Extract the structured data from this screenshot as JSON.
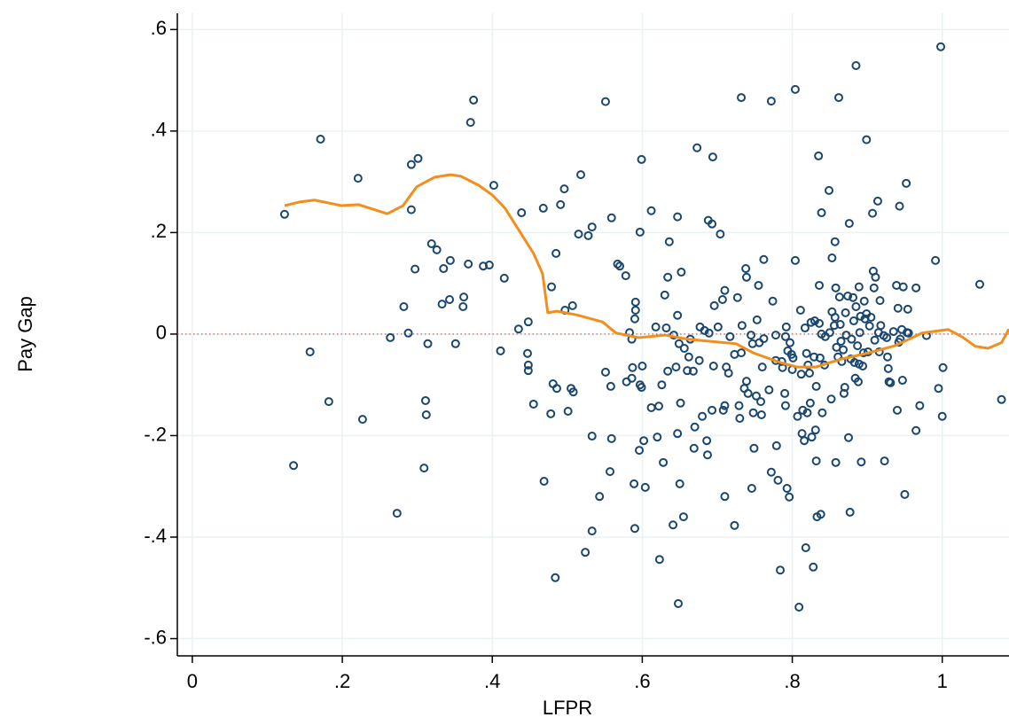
{
  "chart_data": {
    "type": "scatter",
    "x_label": "LFPR",
    "y_label": "Pay Gap",
    "xlim": [
      -0.02,
      1.089
    ],
    "ylim": [
      -0.634,
      0.632
    ],
    "xticks": [
      0,
      {
        "value": 0.2,
        "label": ".2"
      },
      {
        "value": 0.4,
        "label": ".4"
      },
      {
        "value": 0.6,
        "label": ".6"
      },
      {
        "value": 0.8,
        "label": ".8"
      },
      1
    ],
    "yticks": [
      {
        "value": -0.6,
        "label": "-.6"
      },
      {
        "value": -0.4,
        "label": "-.4"
      },
      {
        "value": -0.2,
        "label": "-.2"
      },
      0,
      {
        "value": 0.2,
        "label": ".2"
      },
      {
        "value": 0.4,
        "label": ".4"
      },
      {
        "value": 0.6,
        "label": ".6"
      }
    ],
    "grid": true,
    "reference_line": {
      "value": 0,
      "color": "#c0504d"
    },
    "series": [
      {
        "type": "scatter",
        "color": "#1a476f",
        "x": [
          0.123,
          0.135,
          0.157,
          0.171,
          0.182,
          0.221,
          0.227,
          0.264,
          0.273,
          0.282,
          0.288,
          0.292,
          0.292,
          0.297,
          0.301,
          0.309,
          0.311,
          0.312,
          0.314,
          0.319,
          0.326,
          0.333,
          0.335,
          0.343,
          0.344,
          0.351,
          0.361,
          0.362,
          0.368,
          0.371,
          0.375,
          0.388,
          0.396,
          0.402,
          0.411,
          0.416,
          0.435,
          0.439,
          0.448,
          0.447,
          0.448,
          0.448,
          0.455,
          0.468,
          0.469,
          0.479,
          0.478,
          0.481,
          0.484,
          0.485,
          0.486,
          0.491,
          0.496,
          0.497,
          0.501,
          0.505,
          0.507,
          0.508,
          0.518,
          0.515,
          0.524,
          0.528,
          0.533,
          0.533,
          0.533,
          0.543,
          0.551,
          0.551,
          0.557,
          0.558,
          0.559,
          0.559,
          0.567,
          0.57,
          0.578,
          0.579,
          0.583,
          0.586,
          0.586,
          0.587,
          0.589,
          0.59,
          0.59,
          0.591,
          0.591,
          0.596,
          0.597,
          0.597,
          0.599,
          0.599,
          0.6,
          0.602,
          0.604,
          0.612,
          0.612,
          0.618,
          0.62,
          0.622,
          0.623,
          0.626,
          0.628,
          0.63,
          0.632,
          0.634,
          0.634,
          0.636,
          0.641,
          0.642,
          0.645,
          0.647,
          0.647,
          0.647,
          0.648,
          0.649,
          0.65,
          0.651,
          0.652,
          0.655,
          0.656,
          0.66,
          0.662,
          0.664,
          0.668,
          0.669,
          0.67,
          0.673,
          0.676,
          0.677,
          0.68,
          0.683,
          0.686,
          0.687,
          0.688,
          0.689,
          0.693,
          0.694,
          0.693,
          0.695,
          0.696,
          0.701,
          0.704,
          0.707,
          0.708,
          0.71,
          0.71,
          0.71,
          0.712,
          0.715,
          0.717,
          0.723,
          0.723,
          0.727,
          0.729,
          0.73,
          0.732,
          0.732,
          0.733,
          0.736,
          0.738,
          0.739,
          0.739,
          0.741,
          0.745,
          0.746,
          0.747,
          0.748,
          0.749,
          0.752,
          0.753,
          0.755,
          0.756,
          0.758,
          0.759,
          0.76,
          0.762,
          0.762,
          0.769,
          0.772,
          0.772,
          0.774,
          0.778,
          0.778,
          0.779,
          0.781,
          0.784,
          0.786,
          0.787,
          0.79,
          0.791,
          0.791,
          0.792,
          0.793,
          0.794,
          0.796,
          0.797,
          0.799,
          0.8,
          0.801,
          0.804,
          0.804,
          0.807,
          0.809,
          0.811,
          0.812,
          0.813,
          0.814,
          0.816,
          0.817,
          0.818,
          0.819,
          0.82,
          0.821,
          0.823,
          0.824,
          0.825,
          0.826,
          0.828,
          0.829,
          0.83,
          0.831,
          0.832,
          0.832,
          0.833,
          0.835,
          0.836,
          0.836,
          0.837,
          0.838,
          0.839,
          0.839,
          0.84,
          0.843,
          0.844,
          0.849,
          0.85,
          0.852,
          0.853,
          0.853,
          0.856,
          0.857,
          0.857,
          0.858,
          0.858,
          0.859,
          0.861,
          0.862,
          0.863,
          0.864,
          0.865,
          0.866,
          0.868,
          0.869,
          0.87,
          0.871,
          0.872,
          0.874,
          0.875,
          0.876,
          0.877,
          0.878,
          0.879,
          0.881,
          0.882,
          0.883,
          0.884,
          0.885,
          0.885,
          0.887,
          0.888,
          0.889,
          0.889,
          0.89,
          0.891,
          0.892,
          0.894,
          0.895,
          0.896,
          0.897,
          0.899,
          0.899,
          0.901,
          0.903,
          0.905,
          0.907,
          0.908,
          0.909,
          0.91,
          0.911,
          0.914,
          0.915,
          0.916,
          0.917,
          0.918,
          0.922,
          0.923,
          0.926,
          0.927,
          0.928,
          0.929,
          0.931,
          0.935,
          0.939,
          0.94,
          0.941,
          0.942,
          0.943,
          0.944,
          0.946,
          0.947,
          0.948,
          0.95,
          0.952,
          0.953,
          0.954,
          0.955,
          0.965,
          0.965,
          0.97,
          0.979,
          0.991,
          0.995,
          0.998,
          1.0,
          1.001,
          1.05,
          1.079
        ],
        "values": [
          0.236,
          -0.259,
          -0.035,
          0.384,
          -0.133,
          0.307,
          -0.168,
          -0.007,
          -0.353,
          0.054,
          0.002,
          0.245,
          0.334,
          0.128,
          0.346,
          -0.264,
          -0.131,
          -0.159,
          -0.019,
          0.178,
          0.166,
          0.059,
          0.129,
          0.068,
          0.145,
          -0.019,
          0.054,
          0.073,
          0.138,
          0.417,
          0.461,
          0.134,
          0.136,
          0.293,
          -0.033,
          0.11,
          0.01,
          0.239,
          0.024,
          -0.038,
          -0.061,
          -0.072,
          -0.138,
          0.248,
          -0.29,
          0.093,
          -0.157,
          -0.098,
          -0.48,
          0.159,
          -0.107,
          0.255,
          0.286,
          0.047,
          -0.152,
          -0.107,
          0.056,
          -0.114,
          0.314,
          0.197,
          -0.43,
          0.194,
          0.211,
          -0.201,
          -0.388,
          -0.32,
          0.458,
          -0.075,
          -0.271,
          -0.103,
          0.229,
          -0.206,
          0.138,
          0.134,
          0.115,
          -0.094,
          0.003,
          -0.087,
          -0.01,
          -0.066,
          -0.295,
          -0.383,
          0.03,
          0.047,
          0.063,
          -0.229,
          -0.1,
          0.201,
          0.344,
          -0.105,
          -0.063,
          -0.21,
          -0.302,
          0.243,
          -0.145,
          0.014,
          -0.203,
          -0.142,
          -0.444,
          -0.1,
          -0.253,
          0.077,
          0.012,
          0.112,
          -0.073,
          0.182,
          -0.376,
          -0.002,
          -0.065,
          0.231,
          0.037,
          -0.196,
          -0.531,
          -0.019,
          -0.295,
          -0.136,
          0.122,
          -0.36,
          -0.028,
          -0.072,
          -0.045,
          -0.01,
          -0.073,
          -0.225,
          -0.183,
          0.367,
          -0.052,
          0.014,
          -0.162,
          0.007,
          -0.21,
          -0.238,
          0.224,
          0.002,
          0.217,
          0.349,
          -0.15,
          -0.063,
          0.056,
          0.014,
          0.197,
          0.068,
          -0.15,
          0.086,
          -0.32,
          -0.141,
          -0.065,
          -0.077,
          -0.005,
          -0.04,
          -0.377,
          0.072,
          -0.141,
          -0.166,
          -0.037,
          0.466,
          0.017,
          -0.107,
          0.129,
          0.112,
          -0.093,
          -0.117,
          -0.002,
          -0.304,
          -0.019,
          -0.155,
          -0.225,
          -0.122,
          0.028,
          0.096,
          -0.017,
          -0.133,
          -0.159,
          -0.065,
          0.147,
          -0.009,
          -0.11,
          0.459,
          -0.272,
          0.065,
          -0.052,
          -0.002,
          -0.22,
          -0.288,
          -0.465,
          -0.054,
          -0.066,
          -0.117,
          -0.005,
          -0.141,
          0.014,
          -0.304,
          -0.033,
          -0.321,
          -0.017,
          -0.04,
          -0.07,
          -0.047,
          0.145,
          0.482,
          -0.162,
          -0.538,
          0.047,
          -0.079,
          -0.196,
          -0.15,
          -0.21,
          0.012,
          -0.421,
          -0.038,
          -0.155,
          -0.061,
          -0.077,
          -0.136,
          0.023,
          -0.203,
          -0.459,
          -0.045,
          0.026,
          -0.189,
          -0.103,
          -0.25,
          -0.36,
          0.351,
          0.096,
          0.021,
          -0.047,
          -0.355,
          0.239,
          0.0,
          -0.155,
          -0.061,
          -0.005,
          0.283,
          0.003,
          -0.128,
          0.15,
          0.044,
          0.017,
          0.182,
          0.033,
          0.091,
          -0.253,
          -0.026,
          -0.045,
          0.466,
          0.073,
          0.019,
          -0.014,
          -0.054,
          -0.031,
          -0.117,
          -0.105,
          0.042,
          -0.002,
          0.075,
          -0.204,
          0.218,
          -0.351,
          -0.049,
          -0.01,
          0.072,
          0.026,
          -0.056,
          -0.087,
          0.054,
          0.529,
          -0.023,
          -0.094,
          0.093,
          -0.059,
          0.003,
          0.035,
          -0.252,
          -0.063,
          -0.037,
          0.065,
          0.03,
          0.04,
          0.383,
          -0.035,
          0.016,
          0.033,
          0.238,
          0.124,
          0.091,
          -0.012,
          0.112,
          0.262,
          0.003,
          -0.035,
          0.066,
          0.017,
          -0.003,
          -0.25,
          -0.007,
          -0.045,
          -0.068,
          -0.094,
          -0.096,
          0.005,
          0.096,
          -0.15,
          0.051,
          -0.016,
          0.252,
          -0.01,
          0.009,
          -0.091,
          0.093,
          -0.316,
          0.297,
          0.003,
          0.049,
          0.002,
          0.091,
          -0.19,
          -0.141,
          -0.003,
          0.145,
          -0.107,
          0.566,
          -0.162,
          -0.066,
          0.098,
          -0.129
        ]
      },
      {
        "type": "line",
        "color": "#f28e1c",
        "x": [
          0.123,
          0.142,
          0.163,
          0.199,
          0.222,
          0.26,
          0.281,
          0.299,
          0.323,
          0.344,
          0.358,
          0.382,
          0.4,
          0.417,
          0.437,
          0.455,
          0.467,
          0.474,
          0.486,
          0.512,
          0.547,
          0.565,
          0.595,
          0.63,
          0.66,
          0.689,
          0.725,
          0.748,
          0.784,
          0.807,
          0.831,
          0.866,
          0.902,
          0.937,
          0.973,
          1.008,
          1.026,
          1.044,
          1.061,
          1.079,
          1.089
        ],
        "values": [
          0.253,
          0.26,
          0.264,
          0.253,
          0.255,
          0.237,
          0.253,
          0.29,
          0.309,
          0.314,
          0.311,
          0.293,
          0.274,
          0.248,
          0.201,
          0.159,
          0.119,
          0.042,
          0.045,
          0.038,
          0.024,
          0.002,
          -0.007,
          -0.002,
          -0.01,
          -0.014,
          -0.019,
          -0.037,
          -0.056,
          -0.065,
          -0.065,
          -0.049,
          -0.037,
          -0.023,
          0.002,
          0.009,
          -0.005,
          -0.024,
          -0.028,
          -0.017,
          0.01
        ]
      }
    ]
  }
}
